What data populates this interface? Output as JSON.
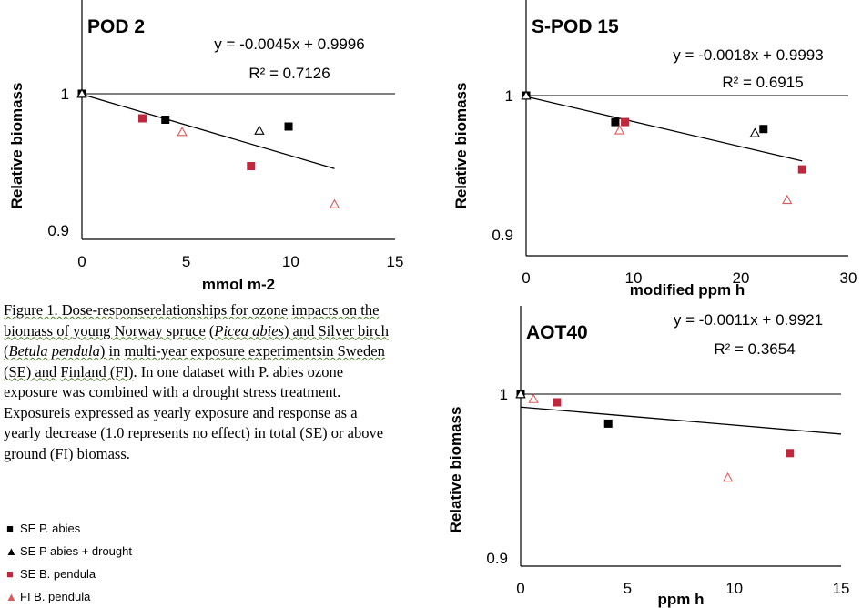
{
  "chart_data": [
    {
      "type": "scatter",
      "title": "POD 2",
      "xlabel": "mmol m-2",
      "ylabel": "Relative biomass",
      "xlim": [
        0,
        15
      ],
      "ylim": [
        0.9,
        1.05
      ],
      "x_ticks": [
        "0",
        "5",
        "10",
        "15"
      ],
      "y_ticks": [
        "1",
        "0.9"
      ],
      "equation": "y = -0.0045x + 0.9996",
      "r2": "R² = 0.7126",
      "reference_line": 1,
      "trendline": {
        "slope": -0.0045,
        "intercept": 0.9996,
        "x_range": [
          0,
          12.1
        ]
      },
      "series": [
        {
          "name": "SE P. abies",
          "marker": "square",
          "color": "#000000",
          "points": [
            [
              0,
              1.0
            ],
            [
              4.0,
              0.981
            ],
            [
              9.9,
              0.976
            ]
          ]
        },
        {
          "name": "SE P abies + drought",
          "marker": "triangle-open",
          "color": "#000000",
          "points": [
            [
              0,
              1.0
            ],
            [
              8.5,
              0.973
            ]
          ]
        },
        {
          "name": "SE B. pendula",
          "marker": "square",
          "color": "#c0263c",
          "points": [
            [
              2.9,
              0.982
            ],
            [
              8.1,
              0.947
            ]
          ]
        },
        {
          "name": "FI B. pendula",
          "marker": "triangle-open",
          "color": "#e05a5a",
          "points": [
            [
              4.8,
              0.972
            ],
            [
              12.1,
              0.919
            ]
          ]
        }
      ]
    },
    {
      "type": "scatter",
      "title": "S-POD 15",
      "xlabel": "modified ppm h",
      "ylabel": "Relative biomass",
      "xlim": [
        0,
        30
      ],
      "ylim": [
        0.9,
        1.05
      ],
      "x_ticks": [
        "0",
        "10",
        "20",
        "30"
      ],
      "y_ticks": [
        "1",
        "0.9"
      ],
      "equation": "y = -0.0018x + 0.9993",
      "r2": "R² = 0.6915",
      "reference_line": 1,
      "trendline": {
        "slope": -0.0018,
        "intercept": 0.9993,
        "x_range": [
          0,
          25.7
        ]
      },
      "series": [
        {
          "name": "SE P. abies",
          "marker": "square",
          "color": "#000000",
          "points": [
            [
              0,
              1.0
            ],
            [
              8.3,
              0.981
            ],
            [
              22.1,
              0.976
            ]
          ]
        },
        {
          "name": "SE P abies + drought",
          "marker": "triangle-open",
          "color": "#000000",
          "points": [
            [
              0,
              1.0
            ],
            [
              21.3,
              0.973
            ]
          ]
        },
        {
          "name": "SE B. pendula",
          "marker": "square",
          "color": "#c0263c",
          "points": [
            [
              9.2,
              0.981
            ],
            [
              25.7,
              0.947
            ]
          ]
        },
        {
          "name": "FI B. pendula",
          "marker": "triangle-open",
          "color": "#e05a5a",
          "points": [
            [
              8.7,
              0.975
            ],
            [
              24.3,
              0.925
            ]
          ]
        }
      ]
    },
    {
      "type": "scatter",
      "title": "AOT40",
      "xlabel": "ppm h",
      "ylabel": "Relative biomass",
      "xlim": [
        0,
        15
      ],
      "ylim": [
        0.9,
        1.03
      ],
      "x_ticks": [
        "0",
        "5",
        "10",
        "15"
      ],
      "y_ticks": [
        "1",
        "0.9"
      ],
      "equation": "y = -0.0011x + 0.9921",
      "r2": "R² = 0.3654",
      "reference_line": 1,
      "trendline": {
        "slope": -0.0011,
        "intercept": 0.9921,
        "x_range": [
          0,
          15
        ]
      },
      "series": [
        {
          "name": "SE P. abies",
          "marker": "square",
          "color": "#000000",
          "points": [
            [
              0,
              1.0
            ],
            [
              4.1,
              0.982
            ]
          ]
        },
        {
          "name": "SE P abies + drought",
          "marker": "triangle-open",
          "color": "#000000",
          "points": [
            [
              0,
              1.0
            ]
          ]
        },
        {
          "name": "SE B. pendula",
          "marker": "square",
          "color": "#c0263c",
          "points": [
            [
              1.7,
              0.995
            ],
            [
              12.6,
              0.964
            ]
          ]
        },
        {
          "name": "FI B. pendula",
          "marker": "triangle-open",
          "color": "#e05a5a",
          "points": [
            [
              0.6,
              0.997
            ],
            [
              9.7,
              0.949
            ]
          ]
        }
      ]
    }
  ],
  "caption": {
    "underlined": [
      "Figure 1. Dose-responserelationships for ozone",
      "impacts on the biomass of young Norway spruce",
      "Picea abies",
      ") and Silver birch (",
      "Betula pendula",
      ") in",
      "multi-year exposure experimentsin Sweden (SE) and",
      "Finland (FI)"
    ],
    "opening_paren": "(",
    "rest": ". In one dataset with P. abies ozone exposure was combined with a drought stress treatment. Exposureis expressed as yearly exposure and response as a yearly decrease (1.0 represents no effect) in total (SE) or above ground (FI) biomass."
  },
  "legend": [
    {
      "label": "SE P. abies",
      "marker": "square",
      "color": "#000000"
    },
    {
      "label": "SE P abies + drought",
      "marker": "triangle",
      "color": "#000000"
    },
    {
      "label": "SE B. pendula",
      "marker": "square",
      "color": "#c0263c"
    },
    {
      "label": "FI B. pendula",
      "marker": "triangle",
      "color": "#e05a5a"
    }
  ]
}
